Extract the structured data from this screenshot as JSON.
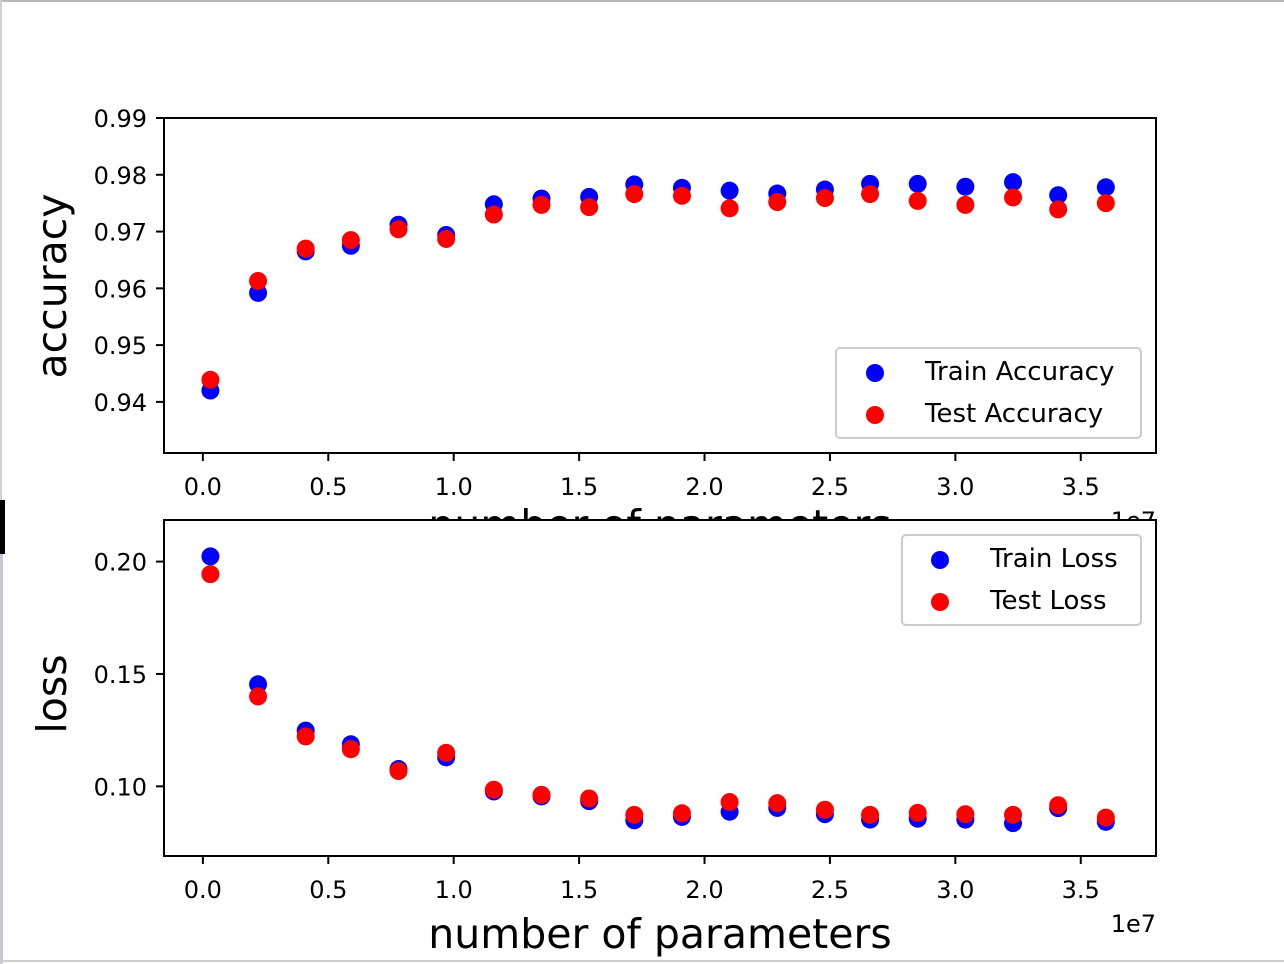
{
  "chart_data": [
    {
      "type": "scatter",
      "title": "",
      "xlabel": "number of parameters",
      "ylabel": "accuracy",
      "x_offset_label": "1e7",
      "xlim": [
        -0.155,
        3.8
      ],
      "ylim": [
        0.931,
        0.99
      ],
      "xticks": [
        0.0,
        0.5,
        1.0,
        1.5,
        2.0,
        2.5,
        3.0,
        3.5
      ],
      "xtick_labels": [
        "0.0",
        "0.5",
        "1.0",
        "1.5",
        "2.0",
        "2.5",
        "3.0",
        "3.5"
      ],
      "yticks": [
        0.94,
        0.95,
        0.96,
        0.97,
        0.98,
        0.99
      ],
      "ytick_labels": [
        "0.94",
        "0.95",
        "0.96",
        "0.97",
        "0.98",
        "0.99"
      ],
      "grid": false,
      "legend_position": "lower-right",
      "x": [
        0.03,
        0.22,
        0.41,
        0.59,
        0.78,
        0.97,
        1.16,
        1.35,
        1.54,
        1.72,
        1.91,
        2.1,
        2.29,
        2.48,
        2.66,
        2.85,
        3.04,
        3.23,
        3.41,
        3.6
      ],
      "series": [
        {
          "name": "Train Accuracy",
          "color": "#0000ff",
          "values": [
            0.942,
            0.9592,
            0.9665,
            0.9675,
            0.9712,
            0.9694,
            0.9748,
            0.9758,
            0.9761,
            0.9783,
            0.9777,
            0.9772,
            0.9767,
            0.9774,
            0.9784,
            0.9784,
            0.9779,
            0.9787,
            0.9764,
            0.9778
          ]
        },
        {
          "name": "Test Accuracy",
          "color": "#ff0000",
          "values": [
            0.9439,
            0.9613,
            0.967,
            0.9685,
            0.9704,
            0.9687,
            0.973,
            0.9747,
            0.9743,
            0.9766,
            0.9763,
            0.9741,
            0.9752,
            0.9759,
            0.9766,
            0.9754,
            0.9747,
            0.976,
            0.9739,
            0.975
          ]
        }
      ]
    },
    {
      "type": "scatter",
      "title": "",
      "xlabel": "number of parameters",
      "ylabel": "loss",
      "x_offset_label": "1e7",
      "xlim": [
        -0.155,
        3.8
      ],
      "ylim": [
        0.069,
        0.2185
      ],
      "xticks": [
        0.0,
        0.5,
        1.0,
        1.5,
        2.0,
        2.5,
        3.0,
        3.5
      ],
      "xtick_labels": [
        "0.0",
        "0.5",
        "1.0",
        "1.5",
        "2.0",
        "2.5",
        "3.0",
        "3.5"
      ],
      "yticks": [
        0.1,
        0.15,
        0.2
      ],
      "ytick_labels": [
        "0.10",
        "0.15",
        "0.20"
      ],
      "grid": false,
      "legend_position": "upper-right",
      "x": [
        0.03,
        0.22,
        0.41,
        0.59,
        0.78,
        0.97,
        1.16,
        1.35,
        1.54,
        1.72,
        1.91,
        2.1,
        2.29,
        2.48,
        2.66,
        2.85,
        3.04,
        3.23,
        3.41,
        3.6
      ],
      "series": [
        {
          "name": "Train Loss",
          "color": "#0000ff",
          "values": [
            0.2023,
            0.1454,
            0.1248,
            0.1187,
            0.1077,
            0.1129,
            0.0977,
            0.0955,
            0.0934,
            0.0849,
            0.0864,
            0.0887,
            0.0904,
            0.0876,
            0.0852,
            0.0856,
            0.0852,
            0.0836,
            0.0903,
            0.0842
          ]
        },
        {
          "name": "Test Loss",
          "color": "#ff0000",
          "values": [
            0.1944,
            0.14,
            0.1222,
            0.1165,
            0.1068,
            0.1149,
            0.0985,
            0.0962,
            0.0946,
            0.0873,
            0.088,
            0.093,
            0.0925,
            0.0896,
            0.0873,
            0.0882,
            0.0876,
            0.0873,
            0.0916,
            0.0861
          ]
        }
      ]
    }
  ]
}
